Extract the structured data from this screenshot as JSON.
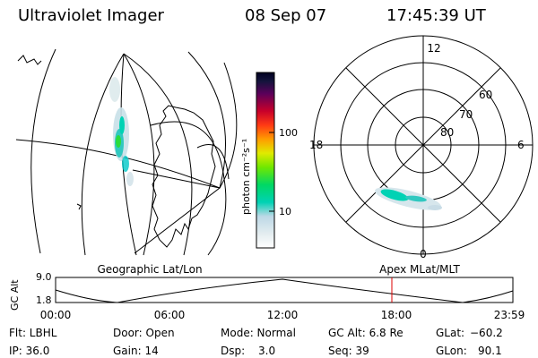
{
  "header": {
    "instrument": "Ultraviolet Imager",
    "date": "08 Sep 07",
    "time": "17:45:39 UT"
  },
  "map_labels": {
    "left": "Geographic Lat/Lon",
    "right": "Apex  MLat/MLT"
  },
  "colorbar": {
    "label": "photon cm⁻²s⁻¹",
    "ticks": [
      "100",
      "10"
    ],
    "scale": "log",
    "colors": [
      "#ffffff",
      "#e6eef0",
      "#c8dcea",
      "#9cd0dc",
      "#00d2b4",
      "#00d864",
      "#28e028",
      "#a0f000",
      "#e0ea00",
      "#ffb000",
      "#ff7800",
      "#ff1414",
      "#c80028",
      "#640064",
      "#14143c",
      "#000028"
    ]
  },
  "polar": {
    "mlt_labels": [
      "12",
      "18",
      "6",
      "0"
    ],
    "lat_labels": [
      "60",
      "70",
      "80"
    ]
  },
  "timeline": {
    "axis_label": "GC Alt",
    "ytick_top": "9.0",
    "ytick_bottom": "1.8",
    "xticks": [
      "00:00",
      "06:00",
      "12:00",
      "18:00",
      "23:59"
    ],
    "current_time": "17:45:39",
    "marker_color": "#dd0000"
  },
  "footer": {
    "flt": "Flt: LBHL",
    "ip": "IP: 36.0",
    "door": "Door: Open",
    "gain": "Gain: 14",
    "mode": "Mode: Normal",
    "dsp": "Dsp:",
    "dsp_val": "3.0",
    "gcalt": "GC Alt: 6.8 Re",
    "seq": "Seq: 39",
    "glat": "GLat:",
    "glat_val": "−60.2",
    "glon": "GLon:",
    "glon_val": "90.1"
  }
}
